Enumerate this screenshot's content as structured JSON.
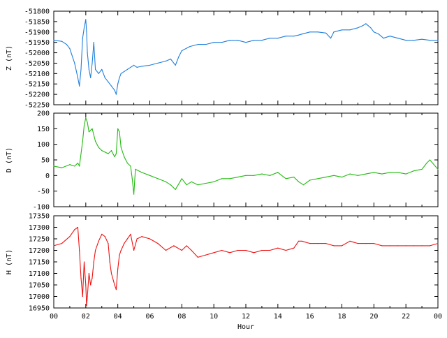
{
  "chart_data": [
    {
      "type": "line",
      "panel": "Z",
      "ylabel": "Z (nT)",
      "ylim": [
        -52250,
        -51800
      ],
      "yticks": [
        -51800,
        -51850,
        -51900,
        -51950,
        -52000,
        -52050,
        -52100,
        -52150,
        -52200,
        -52250
      ],
      "color": "#1f7fdd",
      "xlim": [
        0,
        24
      ],
      "series": [
        {
          "x": [
            0,
            0.5,
            0.8,
            1.0,
            1.3,
            1.5,
            1.6,
            1.7,
            1.8,
            1.9,
            2.0,
            2.05,
            2.1,
            2.2,
            2.3,
            2.4,
            2.5,
            2.6,
            2.8,
            3.0,
            3.2,
            3.4,
            3.6,
            3.8,
            3.9,
            4.0,
            4.1,
            4.2,
            4.4,
            4.6,
            4.8,
            5.0,
            5.2,
            5.5,
            6.0,
            6.5,
            7.0,
            7.3,
            7.6,
            7.8,
            8.0,
            8.5,
            9.0,
            9.5,
            10.0,
            10.5,
            11.0,
            11.5,
            12.0,
            12.5,
            13.0,
            13.5,
            14.0,
            14.5,
            15.0,
            15.3,
            15.5,
            16.0,
            16.5,
            17.0,
            17.3,
            17.5,
            18.0,
            18.5,
            19.0,
            19.3,
            19.5,
            19.8,
            20.0,
            20.3,
            20.6,
            21.0,
            21.5,
            22.0,
            22.5,
            23.0,
            23.5,
            24.0
          ],
          "y": [
            -51940,
            -51945,
            -51960,
            -51980,
            -52050,
            -52120,
            -52160,
            -52080,
            -51930,
            -51880,
            -51840,
            -51900,
            -52000,
            -52080,
            -52120,
            -52050,
            -51950,
            -52080,
            -52100,
            -52080,
            -52120,
            -52140,
            -52160,
            -52180,
            -52200,
            -52150,
            -52120,
            -52100,
            -52090,
            -52080,
            -52070,
            -52060,
            -52070,
            -52065,
            -52060,
            -52050,
            -52040,
            -52030,
            -52060,
            -52020,
            -51990,
            -51970,
            -51960,
            -51960,
            -51950,
            -51950,
            -51940,
            -51940,
            -51950,
            -51940,
            -51940,
            -51930,
            -51930,
            -51920,
            -51920,
            -51915,
            -51910,
            -51900,
            -51900,
            -51905,
            -51930,
            -51900,
            -51890,
            -51890,
            -51880,
            -51870,
            -51860,
            -51880,
            -51900,
            -51910,
            -51930,
            -51920,
            -51930,
            -51940,
            -51940,
            -51935,
            -51940,
            -51940
          ]
        }
      ]
    },
    {
      "type": "line",
      "panel": "D",
      "ylabel": "D (nT)",
      "ylim": [
        -100,
        200
      ],
      "yticks": [
        200,
        150,
        100,
        50,
        0,
        -50,
        -100
      ],
      "color": "#22bb11",
      "xlim": [
        0,
        24
      ],
      "series": [
        {
          "x": [
            0,
            0.5,
            1.0,
            1.3,
            1.5,
            1.6,
            1.8,
            1.9,
            2.0,
            2.1,
            2.2,
            2.4,
            2.6,
            2.8,
            3.0,
            3.2,
            3.4,
            3.6,
            3.8,
            3.9,
            4.0,
            4.1,
            4.2,
            4.4,
            4.6,
            4.8,
            4.9,
            5.0,
            5.1,
            5.5,
            6.0,
            6.5,
            7.0,
            7.3,
            7.6,
            8.0,
            8.3,
            8.6,
            9.0,
            9.5,
            10.0,
            10.5,
            11.0,
            11.5,
            12.0,
            12.5,
            13.0,
            13.5,
            14.0,
            14.5,
            15.0,
            15.3,
            15.6,
            16.0,
            16.5,
            17.0,
            17.5,
            18.0,
            18.5,
            19.0,
            19.5,
            20.0,
            20.5,
            21.0,
            21.5,
            22.0,
            22.5,
            23.0,
            23.3,
            23.5,
            24.0
          ],
          "y": [
            30,
            25,
            35,
            30,
            40,
            30,
            110,
            160,
            185,
            170,
            140,
            150,
            110,
            90,
            80,
            75,
            70,
            80,
            60,
            70,
            150,
            140,
            90,
            60,
            40,
            30,
            -10,
            -60,
            20,
            10,
            0,
            -10,
            -20,
            -30,
            -45,
            -10,
            -30,
            -20,
            -30,
            -25,
            -20,
            -10,
            -10,
            -5,
            0,
            0,
            5,
            0,
            10,
            -10,
            -5,
            -20,
            -30,
            -15,
            -10,
            -5,
            0,
            -5,
            5,
            0,
            5,
            10,
            5,
            10,
            10,
            5,
            15,
            20,
            40,
            50,
            20
          ]
        }
      ]
    },
    {
      "type": "line",
      "panel": "H",
      "ylabel": "H (nT)",
      "xlabel": "Hour",
      "ylim": [
        16950,
        17350
      ],
      "yticks": [
        17350,
        17300,
        17250,
        17200,
        17150,
        17100,
        17050,
        17000,
        16950
      ],
      "color": "#ee1111",
      "xlim": [
        0,
        24
      ],
      "xticks": [
        "00",
        "02",
        "04",
        "06",
        "08",
        "10",
        "12",
        "14",
        "16",
        "18",
        "20",
        "22",
        "00"
      ],
      "series": [
        {
          "x": [
            0,
            0.5,
            1.0,
            1.3,
            1.5,
            1.6,
            1.7,
            1.8,
            1.9,
            2.0,
            2.05,
            2.1,
            2.2,
            2.3,
            2.4,
            2.5,
            2.6,
            2.8,
            3.0,
            3.2,
            3.4,
            3.5,
            3.6,
            3.8,
            3.9,
            4.0,
            4.1,
            4.2,
            4.4,
            4.6,
            4.8,
            5.0,
            5.2,
            5.5,
            6.0,
            6.5,
            7.0,
            7.5,
            8.0,
            8.3,
            8.6,
            9.0,
            9.5,
            10.0,
            10.5,
            11.0,
            11.5,
            12.0,
            12.5,
            13.0,
            13.5,
            14.0,
            14.5,
            15.0,
            15.3,
            15.5,
            16.0,
            16.5,
            17.0,
            17.5,
            18.0,
            18.5,
            19.0,
            19.5,
            20.0,
            20.5,
            21.0,
            21.5,
            22.0,
            22.5,
            23.0,
            23.5,
            24.0
          ],
          "y": [
            17220,
            17230,
            17260,
            17290,
            17300,
            17200,
            17080,
            17000,
            17150,
            17050,
            16960,
            17000,
            17100,
            17050,
            17080,
            17150,
            17200,
            17240,
            17270,
            17260,
            17230,
            17150,
            17100,
            17050,
            17030,
            17120,
            17180,
            17200,
            17230,
            17250,
            17270,
            17200,
            17250,
            17260,
            17250,
            17230,
            17200,
            17220,
            17200,
            17220,
            17200,
            17170,
            17180,
            17190,
            17200,
            17190,
            17200,
            17200,
            17190,
            17200,
            17200,
            17210,
            17200,
            17210,
            17240,
            17240,
            17230,
            17230,
            17230,
            17220,
            17220,
            17240,
            17230,
            17230,
            17230,
            17220,
            17220,
            17220,
            17220,
            17220,
            17220,
            17220,
            17230
          ]
        }
      ]
    }
  ]
}
